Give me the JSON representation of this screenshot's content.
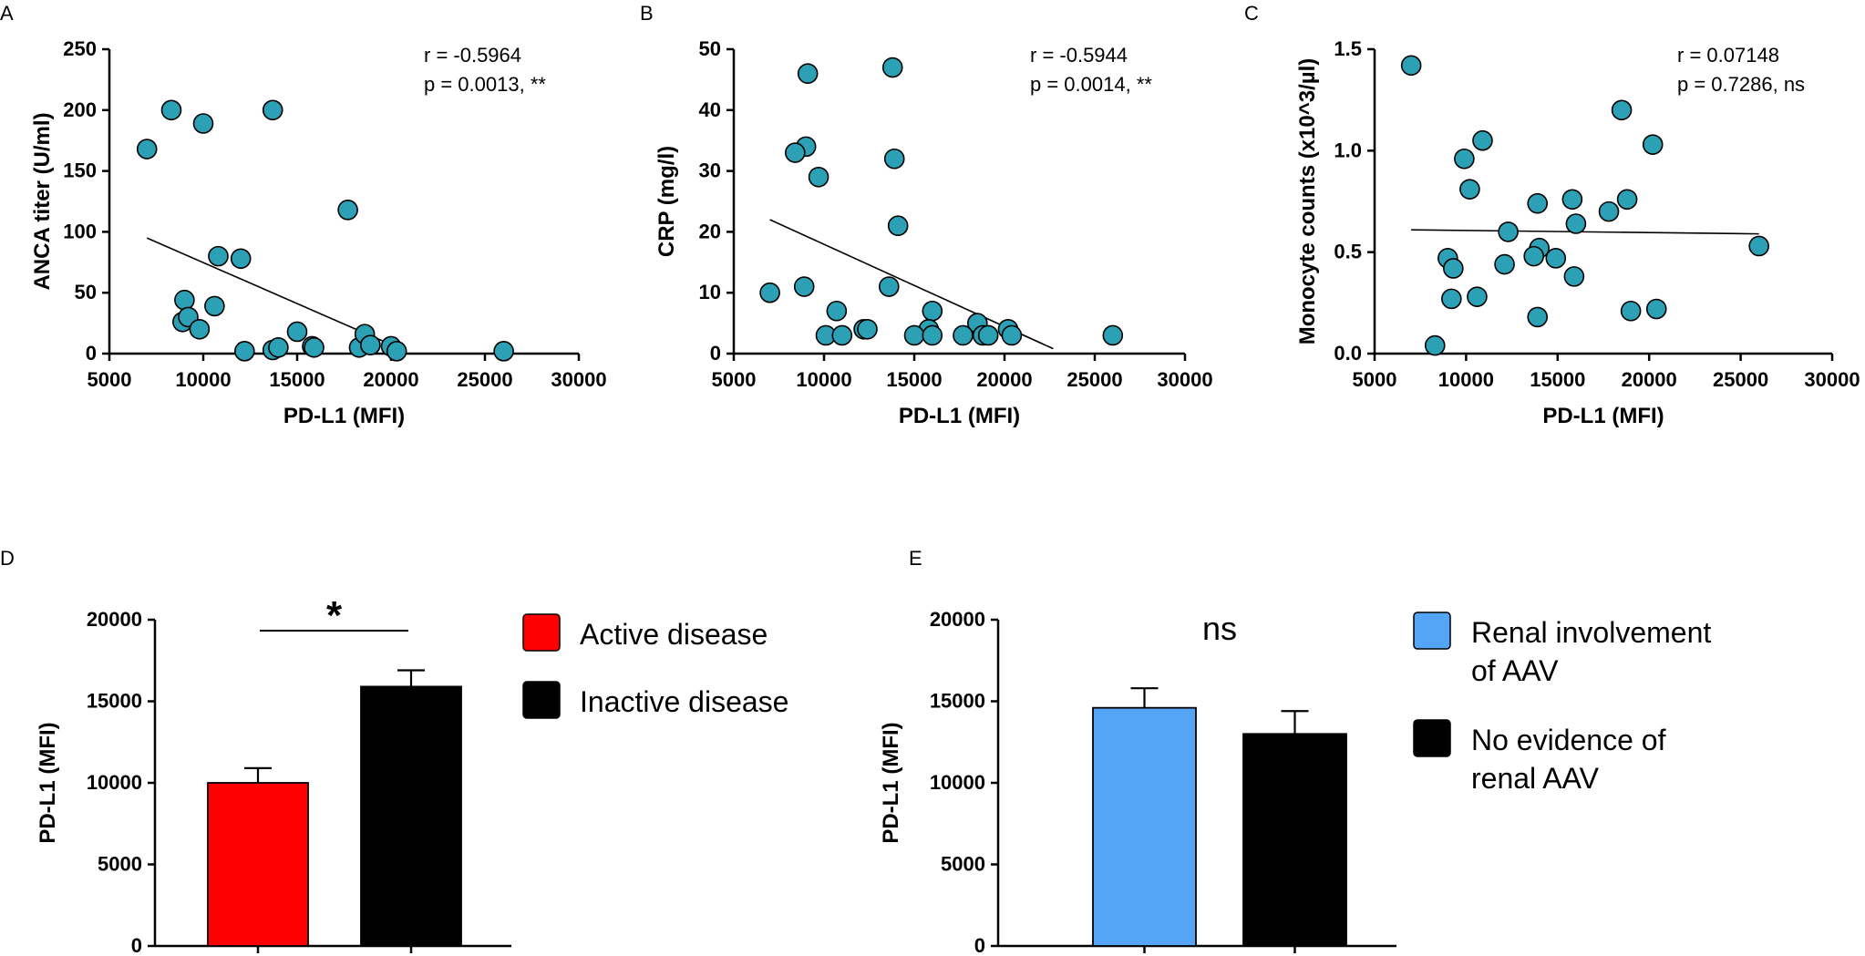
{
  "figure": {
    "panels": [
      "A",
      "B",
      "C",
      "D",
      "E"
    ]
  },
  "chart_data": [
    {
      "id": "A",
      "type": "scatter",
      "xlabel": "PD-L1 (MFI)",
      "ylabel": "ANCA titer (U/ml)",
      "xlim": [
        5000,
        30000
      ],
      "ylim": [
        0,
        250
      ],
      "xticks": [
        5000,
        10000,
        15000,
        20000,
        25000,
        30000
      ],
      "yticks": [
        0,
        50,
        100,
        150,
        200,
        250
      ],
      "stats": [
        "r = -0.5964",
        "p = 0.0013, **"
      ],
      "marker_color": "#2ca0b4",
      "points": [
        [
          7000,
          168
        ],
        [
          8300,
          200
        ],
        [
          10000,
          189
        ],
        [
          13700,
          200
        ],
        [
          17700,
          118
        ],
        [
          10800,
          80
        ],
        [
          12000,
          78
        ],
        [
          9000,
          44
        ],
        [
          10600,
          39
        ],
        [
          8900,
          26
        ],
        [
          9200,
          30
        ],
        [
          9800,
          20
        ],
        [
          12200,
          2
        ],
        [
          13700,
          3
        ],
        [
          14000,
          5
        ],
        [
          15000,
          18
        ],
        [
          15800,
          6
        ],
        [
          15900,
          5
        ],
        [
          18300,
          5
        ],
        [
          18600,
          16
        ],
        [
          18900,
          7
        ],
        [
          20000,
          6
        ],
        [
          20300,
          2
        ],
        [
          26000,
          2
        ]
      ],
      "fit": {
        "x": [
          7000,
          20800
        ],
        "y": [
          95,
          2
        ]
      }
    },
    {
      "id": "B",
      "type": "scatter",
      "xlabel": "PD-L1 (MFI)",
      "ylabel": "CRP (mg/l)",
      "xlim": [
        5000,
        30000
      ],
      "ylim": [
        0,
        50
      ],
      "xticks": [
        5000,
        10000,
        15000,
        20000,
        25000,
        30000
      ],
      "yticks": [
        0,
        10,
        20,
        30,
        40,
        50
      ],
      "stats": [
        "r = -0.5944",
        "p = 0.0014, **"
      ],
      "marker_color": "#2ca0b4",
      "points": [
        [
          9100,
          46
        ],
        [
          13800,
          47
        ],
        [
          9000,
          34
        ],
        [
          8400,
          33
        ],
        [
          13900,
          32
        ],
        [
          9700,
          29
        ],
        [
          14100,
          21
        ],
        [
          7000,
          10
        ],
        [
          8900,
          11
        ],
        [
          13600,
          11
        ],
        [
          10700,
          7
        ],
        [
          16000,
          7
        ],
        [
          12200,
          4
        ],
        [
          12400,
          4
        ],
        [
          15800,
          4
        ],
        [
          18500,
          5
        ],
        [
          20200,
          4
        ],
        [
          10100,
          3
        ],
        [
          11000,
          3
        ],
        [
          15000,
          3
        ],
        [
          16000,
          3
        ],
        [
          17700,
          3
        ],
        [
          18800,
          3
        ],
        [
          19100,
          3
        ],
        [
          20400,
          3
        ],
        [
          26000,
          3
        ]
      ],
      "fit": {
        "x": [
          7000,
          22700
        ],
        "y": [
          22,
          0.8
        ]
      }
    },
    {
      "id": "C",
      "type": "scatter",
      "xlabel": "PD-L1 (MFI)",
      "ylabel": "Monocyte counts (x10^3/µl)",
      "xlim": [
        5000,
        30000
      ],
      "ylim": [
        0,
        1.5
      ],
      "xticks": [
        5000,
        10000,
        15000,
        20000,
        25000,
        30000
      ],
      "yticks": [
        "0.0",
        "0.5",
        "1.0",
        "1.5"
      ],
      "stats": [
        "r = 0.07148",
        "p = 0.7286, ns"
      ],
      "marker_color": "#2ca0b4",
      "points": [
        [
          7000,
          1.42
        ],
        [
          18500,
          1.2
        ],
        [
          10900,
          1.05
        ],
        [
          20200,
          1.03
        ],
        [
          9900,
          0.96
        ],
        [
          10200,
          0.81
        ],
        [
          13900,
          0.74
        ],
        [
          15800,
          0.76
        ],
        [
          18800,
          0.76
        ],
        [
          17800,
          0.7
        ],
        [
          16000,
          0.64
        ],
        [
          12300,
          0.6
        ],
        [
          14000,
          0.52
        ],
        [
          26000,
          0.53
        ],
        [
          13700,
          0.48
        ],
        [
          14900,
          0.47
        ],
        [
          9000,
          0.47
        ],
        [
          9300,
          0.42
        ],
        [
          12100,
          0.44
        ],
        [
          15900,
          0.38
        ],
        [
          9200,
          0.27
        ],
        [
          10600,
          0.28
        ],
        [
          13900,
          0.18
        ],
        [
          19000,
          0.21
        ],
        [
          20400,
          0.22
        ],
        [
          8300,
          0.04
        ]
      ],
      "fit": {
        "x": [
          7000,
          26000
        ],
        "y": [
          0.61,
          0.59
        ]
      }
    },
    {
      "id": "D",
      "type": "bar",
      "ylabel": "PD-L1 (MFI)",
      "ylim": [
        0,
        20000
      ],
      "yticks": [
        0,
        5000,
        10000,
        15000,
        20000
      ],
      "categories": [
        "Active disease",
        "Inactive disease"
      ],
      "values": [
        10000,
        15900
      ],
      "errors": [
        900,
        1000
      ],
      "colors": [
        "#ff0000",
        "#000000"
      ],
      "legend": [
        "Active disease",
        "Inactive disease"
      ],
      "significance": "*"
    },
    {
      "id": "E",
      "type": "bar",
      "ylabel": "PD-L1 (MFI)",
      "ylim": [
        0,
        20000
      ],
      "yticks": [
        0,
        5000,
        10000,
        15000,
        20000
      ],
      "categories": [
        "Renal involvement of AAV",
        "No evidence of renal AAV"
      ],
      "values": [
        14600,
        13000
      ],
      "errors": [
        1200,
        1400
      ],
      "colors": [
        "#55a5f7",
        "#000000"
      ],
      "legend": [
        [
          "Renal involvement",
          "of AAV"
        ],
        [
          "No evidence of",
          "renal AAV"
        ]
      ],
      "significance": "ns"
    }
  ]
}
